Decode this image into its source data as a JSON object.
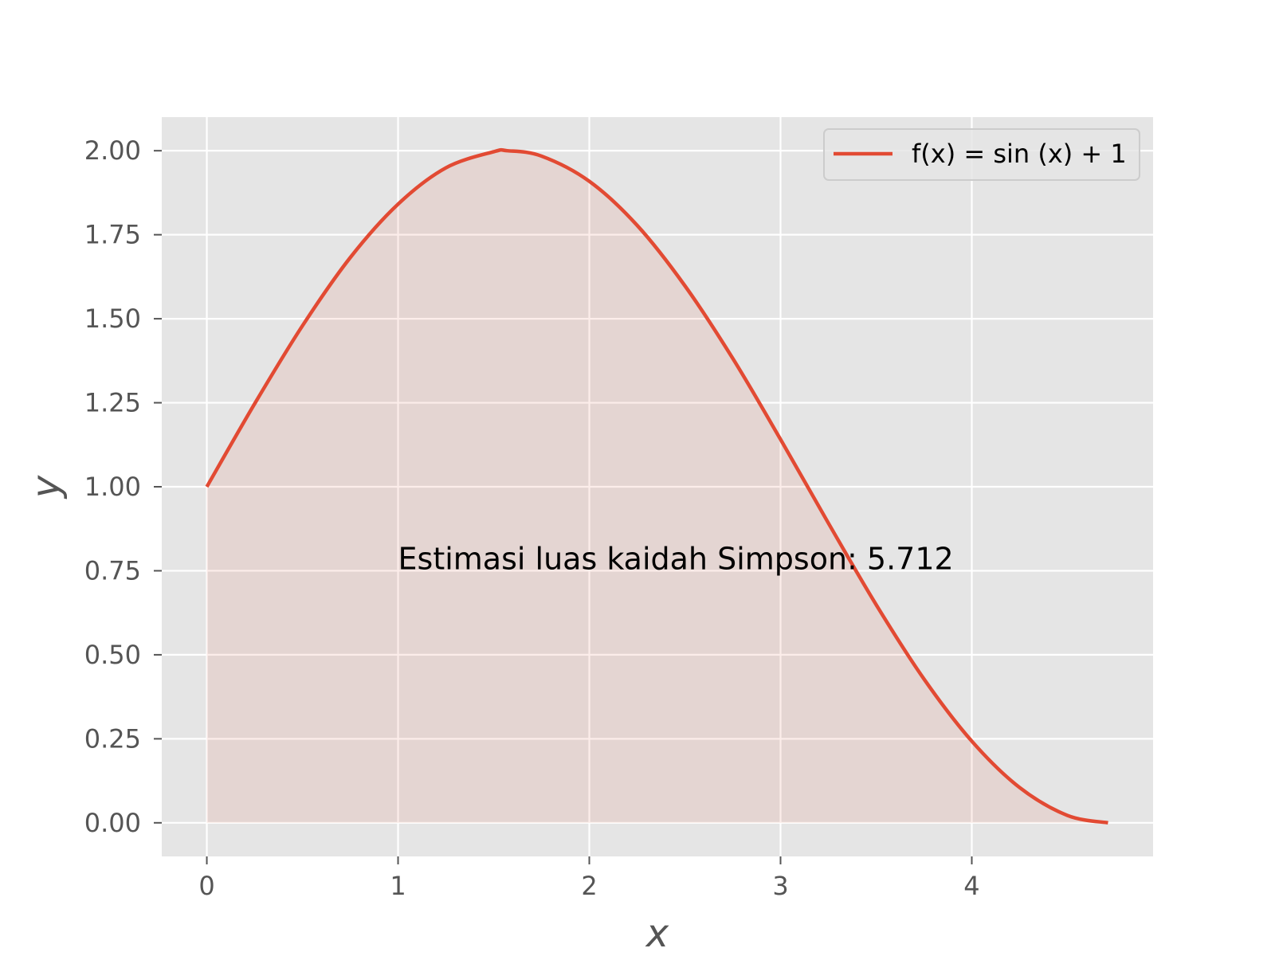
{
  "chart_data": {
    "type": "area",
    "title": "",
    "xlabel": "x",
    "ylabel": "y",
    "xlim": [
      -0.2356,
      4.948
    ],
    "ylim": [
      -0.1,
      2.1
    ],
    "xticks": [
      0,
      1,
      2,
      3,
      4
    ],
    "xtick_labels": [
      "0",
      "1",
      "2",
      "3",
      "4"
    ],
    "yticks": [
      0,
      0.25,
      0.5,
      0.75,
      1.0,
      1.25,
      1.5,
      1.75,
      2.0
    ],
    "ytick_labels": [
      "0.00",
      "0.25",
      "0.50",
      "0.75",
      "1.00",
      "1.25",
      "1.50",
      "1.75",
      "2.00"
    ],
    "grid": true,
    "legend": {
      "position": "top-right",
      "label": "f(x) = sin (x) + 1"
    },
    "series": [
      {
        "name": "f(x) = sin (x) + 1",
        "color": "#E24A33",
        "fill_color": "#E24A33",
        "x": [
          0,
          0.25,
          0.5,
          0.75,
          1.0,
          1.25,
          1.5,
          1.5708,
          1.75,
          2.0,
          2.25,
          2.5,
          2.75,
          3.0,
          3.25,
          3.5,
          3.75,
          4.0,
          4.25,
          4.5,
          4.7124
        ],
        "y": [
          1.0,
          1.247,
          1.479,
          1.682,
          1.841,
          1.949,
          1.997,
          2.0,
          1.984,
          1.909,
          1.778,
          1.598,
          1.382,
          1.141,
          0.892,
          0.649,
          0.428,
          0.243,
          0.105,
          0.022,
          0.0
        ]
      }
    ],
    "annotations": [
      {
        "text": "Estimasi luas kaidah Simpson: 5.712",
        "x": 1.0,
        "y": 0.75
      }
    ]
  },
  "colors": {
    "plot_background": "#E5E5E5",
    "grid": "#FFFFFF",
    "fill": "#E24A33",
    "line": "#E24A33"
  }
}
